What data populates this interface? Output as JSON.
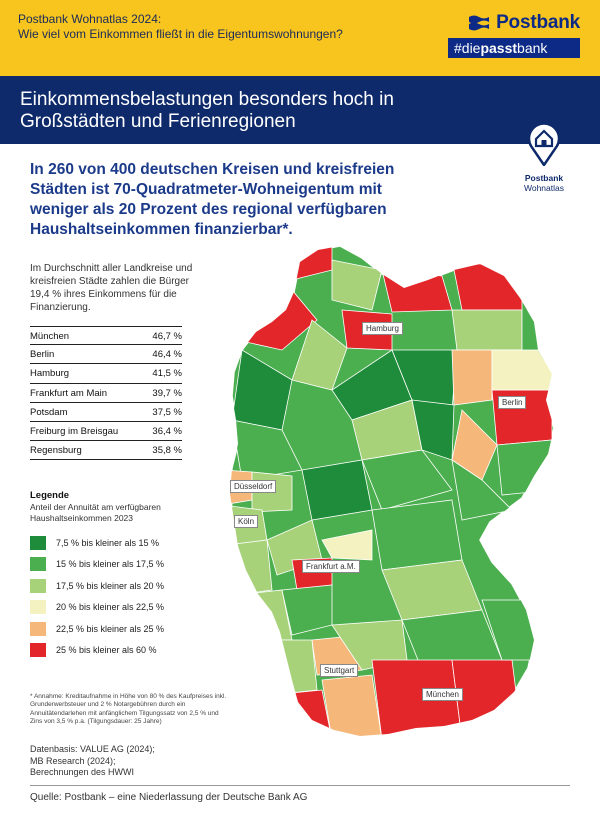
{
  "header": {
    "line1": "Postbank Wohnatlas 2024:",
    "line2": "Wie viel vom Einkommen fließt in die Eigentumswohnungen?",
    "brand": "Postbank",
    "tag_prefix": "#die",
    "tag_bold": "passt",
    "tag_suffix": "bank"
  },
  "banner": {
    "title": "Einkommensbelastungen besonders hoch in Großstädten und Ferienregionen"
  },
  "wohnatlas_badge": {
    "line1": "Postbank",
    "line2": "Wohnatlas"
  },
  "headline": "In 260 von 400 deutschen Kreisen und kreisfreien Städten ist 70-Quadratmeter-Wohneigentum mit weniger als 20 Prozent des regional verfügbaren Haushaltseinkommen finanzierbar*.",
  "intro": "Im Durchschnitt aller Landkreise und kreisfreien Städte zahlen die Bürger 19,4 % ihres Einkommens für die Finanzierung.",
  "ranking": [
    {
      "city": "München",
      "value": "46,7 %"
    },
    {
      "city": "Berlin",
      "value": "46,4 %"
    },
    {
      "city": "Hamburg",
      "value": "41,5  %"
    },
    {
      "city": "Frankfurt am Main",
      "value": "39,7  %"
    },
    {
      "city": "Potsdam",
      "value": "37,5  %"
    },
    {
      "city": "Freiburg im Breisgau",
      "value": "36,4  %"
    },
    {
      "city": "Regensburg",
      "value": "35,8 %"
    }
  ],
  "legend": {
    "title": "Legende",
    "subtitle": "Anteil der Annuität am verfügbaren Haushaltseinkommen 2023",
    "items": [
      {
        "label": "7,5 % bis kleiner als 15 %",
        "color": "#1e8c3a"
      },
      {
        "label": "15 % bis kleiner als 17,5 %",
        "color": "#4caf4f"
      },
      {
        "label": "17,5 % bis kleiner als 20 %",
        "color": "#a8d27a"
      },
      {
        "label": "20 % bis kleiner als 22,5 %",
        "color": "#f3f2c0"
      },
      {
        "label": "22,5 % bis kleiner als 25 %",
        "color": "#f6b77a"
      },
      {
        "label": "25 % bis kleiner als 60 %",
        "color": "#e2262a"
      }
    ]
  },
  "map_labels": [
    {
      "id": "hamburg",
      "text": "Hamburg"
    },
    {
      "id": "berlin",
      "text": "Berlin"
    },
    {
      "id": "duesseldorf",
      "text": "Düsseldorf"
    },
    {
      "id": "koeln",
      "text": "Köln"
    },
    {
      "id": "frankfurt",
      "text": "Frankfurt a.M."
    },
    {
      "id": "stuttgart",
      "text": "Stuttgart"
    },
    {
      "id": "muenchen",
      "text": "München"
    }
  ],
  "footnote": "* Annahme: Kreditaufnahme in Höhe von 80 % des Kaufpreises inkl. Grunderwerbsteuer und 2 % Notargebühren durch ein Annuitätendarlehen mit anfänglichem Tilgungssatz von 2,5 % und Zins von 3,5 % p.a. (Tilgungsdauer: 25 Jahre)",
  "datenbasis": [
    "Datenbasis: VALUE AG (2024);",
    "MB Research (2024);",
    "Berechnungen des HWWI"
  ],
  "source": "Quelle: Postbank – eine Niederlassung der Deutsche Bank AG",
  "colors": {
    "yellow": "#f7c51e",
    "navy": "#0f2a6b"
  }
}
